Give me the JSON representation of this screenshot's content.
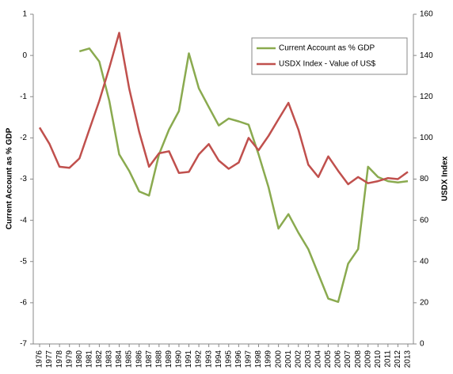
{
  "chart_data": {
    "type": "line",
    "y_label": "Current Account as % GDP",
    "y2_label": "USDX Index",
    "categories": [
      "1976",
      "1977",
      "1978",
      "1979",
      "1980",
      "1981",
      "1982",
      "1983",
      "1984",
      "1985",
      "1986",
      "1987",
      "1988",
      "1989",
      "1990",
      "1991",
      "1992",
      "1993",
      "1994",
      "1995",
      "1996",
      "1997",
      "1998",
      "1999",
      "2000",
      "2001",
      "2002",
      "2003",
      "2004",
      "2005",
      "2006",
      "2007",
      "2008",
      "2009",
      "2010",
      "2011",
      "2012",
      "2013"
    ],
    "series": [
      {
        "name": "Current Account as % GDP",
        "color": "#8aaa4f",
        "axis": "y",
        "values": [
          null,
          null,
          null,
          null,
          0.1,
          0.17,
          -0.15,
          -1.1,
          -2.4,
          -2.8,
          -3.3,
          -3.4,
          -2.4,
          -1.8,
          -1.35,
          0.05,
          -0.8,
          -1.25,
          -1.7,
          -1.53,
          -1.6,
          -1.68,
          -2.4,
          -3.2,
          -4.2,
          -3.85,
          -4.3,
          -4.7,
          -5.3,
          -5.9,
          -5.98,
          -5.05,
          -4.7,
          -2.7,
          -2.95,
          -3.05,
          -3.08,
          -3.05
        ]
      },
      {
        "name": "USDX Index - Value of US$",
        "color": "#c0504d",
        "axis": "y2",
        "values": [
          105,
          97,
          86,
          85.5,
          90,
          104,
          118,
          134,
          151,
          124,
          103,
          86,
          92.5,
          93.5,
          83,
          83.5,
          92,
          97,
          89,
          85,
          88,
          100,
          94,
          101,
          109,
          117,
          104,
          87,
          81,
          91,
          84,
          77.5,
          81,
          78,
          79,
          80.5,
          80,
          83.5
        ]
      }
    ],
    "ylim": [
      -7,
      1
    ],
    "yticks": [
      -7,
      -6,
      -5,
      -4,
      -3,
      -2,
      -1,
      0,
      1
    ],
    "y2lim": [
      0,
      160
    ],
    "y2ticks": [
      0,
      20,
      40,
      60,
      80,
      100,
      120,
      140,
      160
    ],
    "legend": "top-right"
  }
}
